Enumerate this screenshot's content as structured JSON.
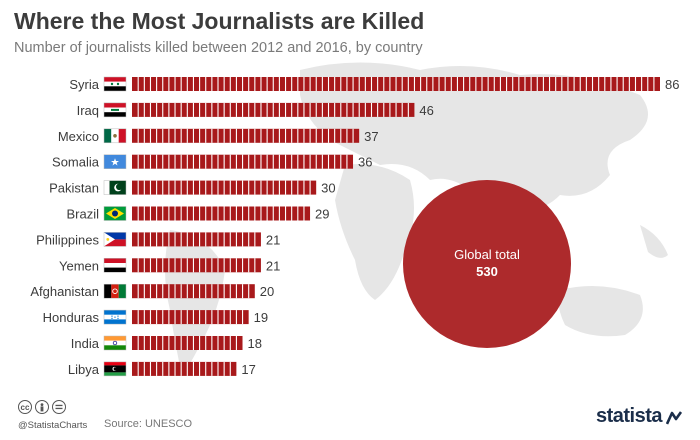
{
  "title": "Where the Most Journalists are Killed",
  "subtitle": "Number of journalists killed between 2012 and 2016, by country",
  "colors": {
    "bar": "#a8191b",
    "bar_divider": "#ffffff",
    "label": "#3c3c3c",
    "map": "#e6e6e6",
    "bubble": "#ad2a2c"
  },
  "global_total": {
    "label": "Global total",
    "value": "530"
  },
  "footer": {
    "handle": "@StatistaCharts",
    "source": "Source: UNESCO",
    "brand": "statista",
    "cc_icons": [
      "cc-icon",
      "attribution-icon",
      "no-derivatives-icon"
    ]
  },
  "chart_data": {
    "type": "bar",
    "orientation": "horizontal",
    "title": "Where the Most Journalists are Killed",
    "subtitle": "Number of journalists killed between 2012 and 2016, by country",
    "categories": [
      "Syria",
      "Iraq",
      "Mexico",
      "Somalia",
      "Pakistan",
      "Brazil",
      "Philippines",
      "Yemen",
      "Afghanistan",
      "Honduras",
      "India",
      "Libya"
    ],
    "values": [
      86,
      46,
      37,
      36,
      30,
      29,
      21,
      21,
      20,
      19,
      18,
      17
    ],
    "value_labels": [
      "86",
      "46",
      "37",
      "36",
      "30",
      "29",
      "21",
      "21",
      "20",
      "19",
      "18",
      "17"
    ],
    "flags": [
      "syria-flag-icon",
      "iraq-flag-icon",
      "mexico-flag-icon",
      "somalia-flag-icon",
      "pakistan-flag-icon",
      "brazil-flag-icon",
      "philippines-flag-icon",
      "yemen-flag-icon",
      "afghanistan-flag-icon",
      "honduras-flag-icon",
      "india-flag-icon",
      "libya-flag-icon"
    ],
    "unit_per_segment": 1,
    "xlim": [
      0,
      86
    ],
    "grid": false,
    "legend": "none"
  }
}
